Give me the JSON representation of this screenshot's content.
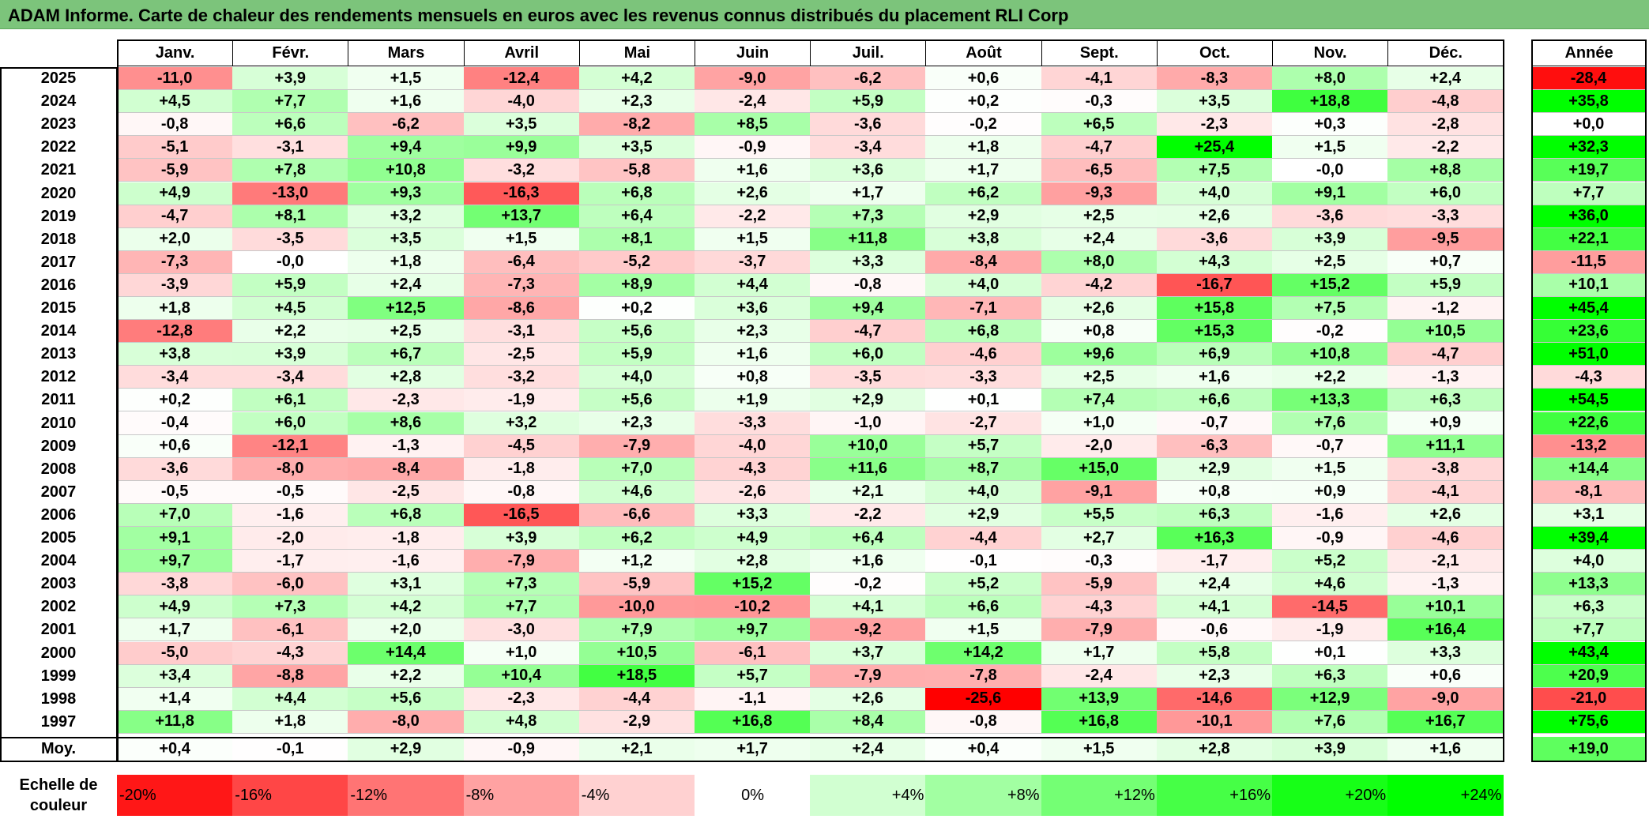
{
  "title": "ADAM Informe. Carte de chaleur des rendements mensuels en euros avec les revenus connus distribués du placement RLI Corp",
  "chart_data": {
    "type": "heatmap",
    "columns": [
      "Janv.",
      "Févr.",
      "Mars",
      "Avril",
      "Mai",
      "Juin",
      "Juil.",
      "Août",
      "Sept.",
      "Oct.",
      "Nov.",
      "Déc."
    ],
    "year_column_label": "Année",
    "rows": [
      {
        "label": "2025",
        "values": [
          "-11,0",
          "+3,9",
          "+1,5",
          "-12,4",
          "+4,2",
          "-9,0",
          "-6,2",
          "+0,6",
          "-4,1",
          "-8,3",
          "+8,0",
          "+2,4"
        ],
        "year": "-28,4"
      },
      {
        "label": "2024",
        "values": [
          "+4,5",
          "+7,7",
          "+1,6",
          "-4,0",
          "+2,3",
          "-2,4",
          "+5,9",
          "+0,2",
          "-0,3",
          "+3,5",
          "+18,8",
          "-4,8"
        ],
        "year": "+35,8"
      },
      {
        "label": "2023",
        "values": [
          "-0,8",
          "+6,6",
          "-6,2",
          "+3,5",
          "-8,2",
          "+8,5",
          "-3,6",
          "-0,2",
          "+6,5",
          "-2,3",
          "+0,3",
          "-2,8"
        ],
        "year": "+0,0"
      },
      {
        "label": "2022",
        "values": [
          "-5,1",
          "-3,1",
          "+9,4",
          "+9,9",
          "+3,5",
          "-0,9",
          "-3,4",
          "+1,8",
          "-4,7",
          "+25,4",
          "+1,5",
          "-2,2"
        ],
        "year": "+32,3"
      },
      {
        "label": "2021",
        "values": [
          "-5,9",
          "+7,8",
          "+10,8",
          "-3,2",
          "-5,8",
          "+1,6",
          "+3,6",
          "+1,7",
          "-6,5",
          "+7,5",
          "-0,0",
          "+8,8"
        ],
        "year": "+19,7"
      },
      {
        "label": "2020",
        "values": [
          "+4,9",
          "-13,0",
          "+9,3",
          "-16,3",
          "+6,8",
          "+2,6",
          "+1,7",
          "+6,2",
          "-9,3",
          "+4,0",
          "+9,1",
          "+6,0"
        ],
        "year": "+7,7"
      },
      {
        "label": "2019",
        "values": [
          "-4,7",
          "+8,1",
          "+3,2",
          "+13,7",
          "+6,4",
          "-2,2",
          "+7,3",
          "+2,9",
          "+2,5",
          "+2,6",
          "-3,6",
          "-3,3"
        ],
        "year": "+36,0"
      },
      {
        "label": "2018",
        "values": [
          "+2,0",
          "-3,5",
          "+3,5",
          "+1,5",
          "+8,1",
          "+1,5",
          "+11,8",
          "+3,8",
          "+2,4",
          "-3,6",
          "+3,9",
          "-9,5"
        ],
        "year": "+22,1"
      },
      {
        "label": "2017",
        "values": [
          "-7,3",
          "-0,0",
          "+1,8",
          "-6,4",
          "-5,2",
          "-3,7",
          "+3,3",
          "-8,4",
          "+8,0",
          "+4,3",
          "+2,5",
          "+0,7"
        ],
        "year": "-11,5"
      },
      {
        "label": "2016",
        "values": [
          "-3,9",
          "+5,9",
          "+2,4",
          "-7,3",
          "+8,9",
          "+4,4",
          "-0,8",
          "+4,0",
          "-4,2",
          "-16,7",
          "+15,2",
          "+5,9"
        ],
        "year": "+10,1"
      },
      {
        "label": "2015",
        "values": [
          "+1,8",
          "+4,5",
          "+12,5",
          "-8,6",
          "+0,2",
          "+3,6",
          "+9,4",
          "-7,1",
          "+2,6",
          "+15,8",
          "+7,5",
          "-1,2"
        ],
        "year": "+45,4"
      },
      {
        "label": "2014",
        "values": [
          "-12,8",
          "+2,2",
          "+2,5",
          "-3,1",
          "+5,6",
          "+2,3",
          "-4,7",
          "+6,8",
          "+0,8",
          "+15,3",
          "-0,2",
          "+10,5"
        ],
        "year": "+23,6"
      },
      {
        "label": "2013",
        "values": [
          "+3,8",
          "+3,9",
          "+6,7",
          "-2,5",
          "+5,9",
          "+1,6",
          "+6,0",
          "-4,6",
          "+9,6",
          "+6,9",
          "+10,8",
          "-4,7"
        ],
        "year": "+51,0"
      },
      {
        "label": "2012",
        "values": [
          "-3,4",
          "-3,4",
          "+2,8",
          "-3,2",
          "+4,0",
          "+0,8",
          "-3,5",
          "-3,3",
          "+2,5",
          "+1,6",
          "+2,2",
          "-1,3"
        ],
        "year": "-4,3"
      },
      {
        "label": "2011",
        "values": [
          "+0,2",
          "+6,1",
          "-2,3",
          "-1,9",
          "+5,6",
          "+1,9",
          "+2,9",
          "+0,1",
          "+7,4",
          "+6,6",
          "+13,3",
          "+6,3"
        ],
        "year": "+54,5"
      },
      {
        "label": "2010",
        "values": [
          "-0,4",
          "+6,0",
          "+8,6",
          "+3,2",
          "+2,3",
          "-3,3",
          "-1,0",
          "-2,7",
          "+1,0",
          "-0,7",
          "+7,6",
          "+0,9"
        ],
        "year": "+22,6"
      },
      {
        "label": "2009",
        "values": [
          "+0,6",
          "-12,1",
          "-1,3",
          "-4,5",
          "-7,9",
          "-4,0",
          "+10,0",
          "+5,7",
          "-2,0",
          "-6,3",
          "-0,7",
          "+11,1"
        ],
        "year": "-13,2"
      },
      {
        "label": "2008",
        "values": [
          "-3,6",
          "-8,0",
          "-8,4",
          "-1,8",
          "+7,0",
          "-4,3",
          "+11,6",
          "+8,7",
          "+15,0",
          "+2,9",
          "+1,5",
          "-3,8"
        ],
        "year": "+14,4"
      },
      {
        "label": "2007",
        "values": [
          "-0,5",
          "-0,5",
          "-2,5",
          "-0,8",
          "+4,6",
          "-2,6",
          "+2,1",
          "+4,0",
          "-9,1",
          "+0,8",
          "+0,9",
          "-4,1"
        ],
        "year": "-8,1"
      },
      {
        "label": "2006",
        "values": [
          "+7,0",
          "-1,6",
          "+6,8",
          "-16,5",
          "-6,6",
          "+3,3",
          "-2,2",
          "+2,9",
          "+5,5",
          "+6,3",
          "-1,6",
          "+2,6"
        ],
        "year": "+3,1"
      },
      {
        "label": "2005",
        "values": [
          "+9,1",
          "-2,0",
          "-1,8",
          "+3,9",
          "+6,2",
          "+4,9",
          "+6,4",
          "-4,4",
          "+2,7",
          "+16,3",
          "-0,9",
          "-4,6"
        ],
        "year": "+39,4"
      },
      {
        "label": "2004",
        "values": [
          "+9,7",
          "-1,7",
          "-1,6",
          "-7,9",
          "+1,2",
          "+2,8",
          "+1,6",
          "-0,1",
          "-0,3",
          "-1,7",
          "+5,2",
          "-2,1"
        ],
        "year": "+4,0"
      },
      {
        "label": "2003",
        "values": [
          "-3,8",
          "-6,0",
          "+3,1",
          "+7,3",
          "-5,9",
          "+15,2",
          "-0,2",
          "+5,2",
          "-5,9",
          "+2,4",
          "+4,6",
          "-1,3"
        ],
        "year": "+13,3"
      },
      {
        "label": "2002",
        "values": [
          "+4,9",
          "+7,3",
          "+4,2",
          "+7,7",
          "-10,0",
          "-10,2",
          "+4,1",
          "+6,6",
          "-4,3",
          "+4,1",
          "-14,5",
          "+10,1"
        ],
        "year": "+6,3"
      },
      {
        "label": "2001",
        "values": [
          "+1,7",
          "-6,1",
          "+2,0",
          "-3,0",
          "+7,9",
          "+9,7",
          "-9,2",
          "+1,5",
          "-7,9",
          "-0,6",
          "-1,9",
          "+16,4"
        ],
        "year": "+7,7"
      },
      {
        "label": "2000",
        "values": [
          "-5,0",
          "-4,3",
          "+14,4",
          "+1,0",
          "+10,5",
          "-6,1",
          "+3,7",
          "+14,2",
          "+1,7",
          "+5,8",
          "+0,1",
          "+3,3"
        ],
        "year": "+43,4"
      },
      {
        "label": "1999",
        "values": [
          "+3,4",
          "-8,8",
          "+2,2",
          "+10,4",
          "+18,5",
          "+5,7",
          "-7,9",
          "-7,8",
          "-2,4",
          "+2,3",
          "+6,3",
          "+0,6"
        ],
        "year": "+20,9"
      },
      {
        "label": "1998",
        "values": [
          "+1,4",
          "+4,4",
          "+5,6",
          "-2,3",
          "-4,4",
          "-1,1",
          "+2,6",
          "-25,6",
          "+13,9",
          "-14,6",
          "+12,9",
          "-9,0"
        ],
        "year": "-21,0"
      },
      {
        "label": "1997",
        "values": [
          "+11,8",
          "+1,8",
          "-8,0",
          "+4,8",
          "-2,9",
          "+16,8",
          "+8,4",
          "-0,8",
          "+16,8",
          "-10,1",
          "+7,6",
          "+16,7"
        ],
        "year": "+75,6"
      }
    ],
    "average": {
      "label": "Moy.",
      "values": [
        "+0,4",
        "-0,1",
        "+2,9",
        "-0,9",
        "+2,1",
        "+1,7",
        "+2,4",
        "+0,4",
        "+1,5",
        "+2,8",
        "+3,9",
        "+1,6"
      ],
      "year": "+19,0"
    },
    "legend": {
      "title_line1": "Echelle de",
      "title_line2": "couleur",
      "steps": [
        "-20%",
        "-16%",
        "-12%",
        "-8%",
        "-4%",
        "0%",
        "+4%",
        "+8%",
        "+12%",
        "+16%",
        "+20%",
        "+24%"
      ],
      "step_values": [
        -20,
        -16,
        -12,
        -8,
        -4,
        0,
        4,
        8,
        12,
        16,
        20,
        24
      ]
    },
    "colors": {
      "negative_max": "#ff0000",
      "neutral": "#ffffff",
      "positive_max": "#00ff00",
      "title_bar": "#7cc47b"
    }
  }
}
